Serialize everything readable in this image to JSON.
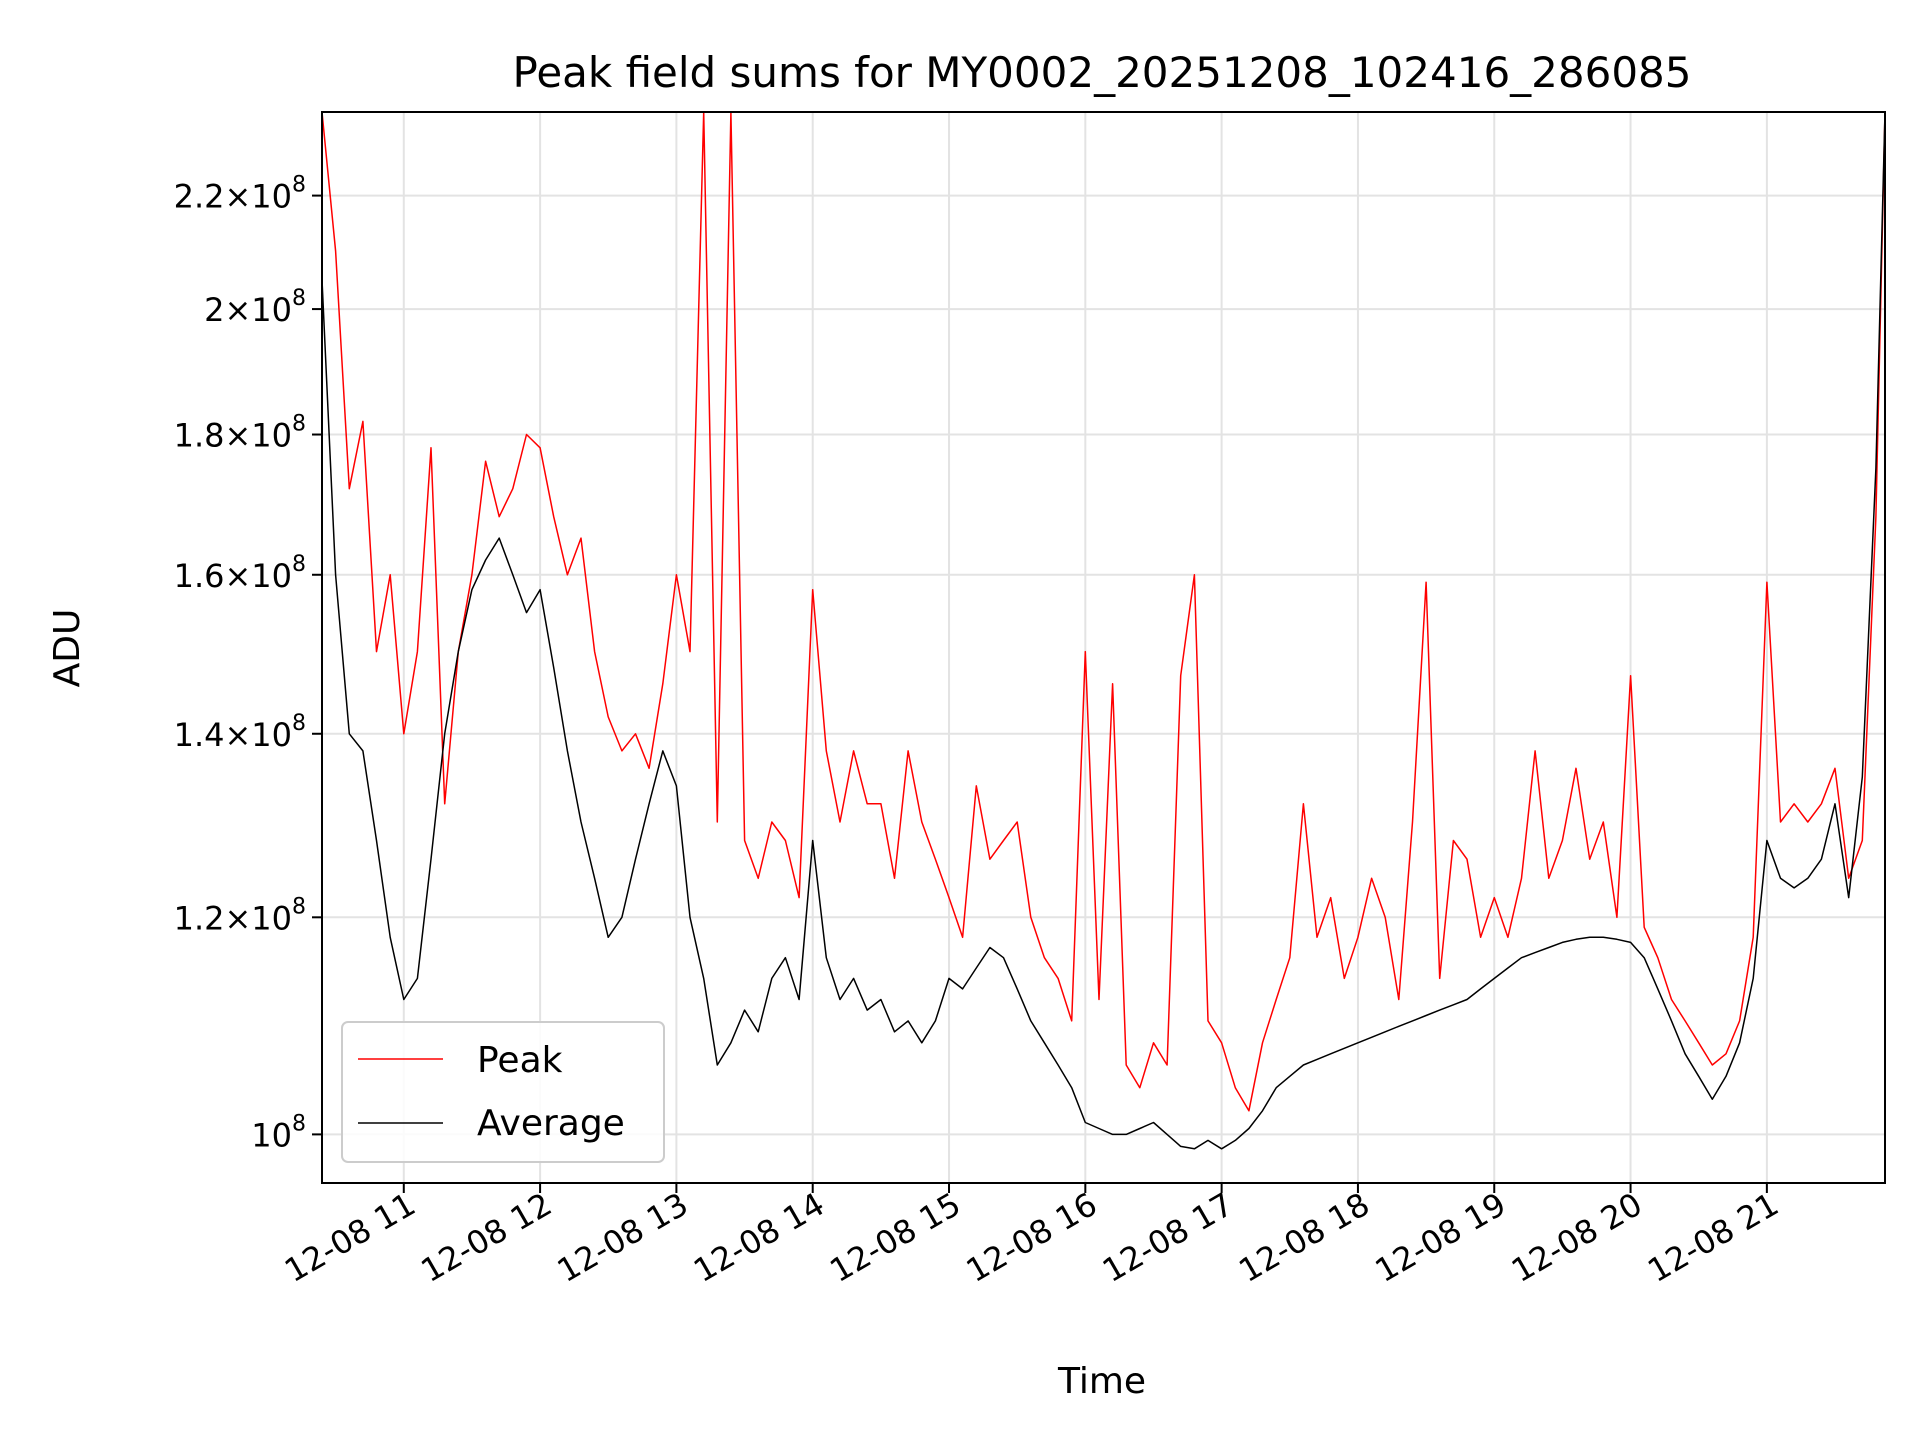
{
  "chart_data": {
    "type": "line",
    "title": "Peak field sums for MY0002_20251208_102416_286085",
    "xlabel": "Time",
    "ylabel": "ADU",
    "yscale": "log",
    "ylim": [
      96000000,
      236000000
    ],
    "xlim": [
      "2025-12-08 10:24",
      "2025-12-08 21:52"
    ],
    "grid": true,
    "legend_position": "lower-left",
    "x_ticks": [
      {
        "value": "2025-12-08 11:00",
        "label": "12-08 11"
      },
      {
        "value": "2025-12-08 12:00",
        "label": "12-08 12"
      },
      {
        "value": "2025-12-08 13:00",
        "label": "12-08 13"
      },
      {
        "value": "2025-12-08 14:00",
        "label": "12-08 14"
      },
      {
        "value": "2025-12-08 15:00",
        "label": "12-08 15"
      },
      {
        "value": "2025-12-08 16:00",
        "label": "12-08 16"
      },
      {
        "value": "2025-12-08 17:00",
        "label": "12-08 17"
      },
      {
        "value": "2025-12-08 18:00",
        "label": "12-08 18"
      },
      {
        "value": "2025-12-08 19:00",
        "label": "12-08 19"
      },
      {
        "value": "2025-12-08 20:00",
        "label": "12-08 20"
      },
      {
        "value": "2025-12-08 21:00",
        "label": "12-08 21"
      }
    ],
    "y_ticks": [
      {
        "value": 100000000,
        "mantissa": "",
        "exp": "8"
      },
      {
        "value": 120000000,
        "mantissa": "1.2",
        "exp": "8"
      },
      {
        "value": 140000000,
        "mantissa": "1.4",
        "exp": "8"
      },
      {
        "value": 160000000,
        "mantissa": "1.6",
        "exp": "8"
      },
      {
        "value": 180000000,
        "mantissa": "1.8",
        "exp": "8"
      },
      {
        "value": 200000000,
        "mantissa": "2",
        "exp": "8"
      },
      {
        "value": 220000000,
        "mantissa": "2.2",
        "exp": "8"
      }
    ],
    "tick_times_label": "×10",
    "series": [
      {
        "name": "Peak",
        "color": "#ff0000",
        "x": [
          "2025-12-08 10:24",
          "2025-12-08 10:30",
          "2025-12-08 10:36",
          "2025-12-08 10:42",
          "2025-12-08 10:48",
          "2025-12-08 10:54",
          "2025-12-08 11:00",
          "2025-12-08 11:06",
          "2025-12-08 11:12",
          "2025-12-08 11:18",
          "2025-12-08 11:24",
          "2025-12-08 11:30",
          "2025-12-08 11:36",
          "2025-12-08 11:42",
          "2025-12-08 11:48",
          "2025-12-08 11:54",
          "2025-12-08 12:00",
          "2025-12-08 12:06",
          "2025-12-08 12:12",
          "2025-12-08 12:18",
          "2025-12-08 12:24",
          "2025-12-08 12:30",
          "2025-12-08 12:36",
          "2025-12-08 12:42",
          "2025-12-08 12:48",
          "2025-12-08 12:54",
          "2025-12-08 13:00",
          "2025-12-08 13:06",
          "2025-12-08 13:12",
          "2025-12-08 13:18",
          "2025-12-08 13:24",
          "2025-12-08 13:30",
          "2025-12-08 13:36",
          "2025-12-08 13:42",
          "2025-12-08 13:48",
          "2025-12-08 13:54",
          "2025-12-08 14:00",
          "2025-12-08 14:06",
          "2025-12-08 14:12",
          "2025-12-08 14:18",
          "2025-12-08 14:24",
          "2025-12-08 14:30",
          "2025-12-08 14:36",
          "2025-12-08 14:42",
          "2025-12-08 14:48",
          "2025-12-08 14:54",
          "2025-12-08 15:00",
          "2025-12-08 15:06",
          "2025-12-08 15:12",
          "2025-12-08 15:18",
          "2025-12-08 15:24",
          "2025-12-08 15:30",
          "2025-12-08 15:36",
          "2025-12-08 15:42",
          "2025-12-08 15:48",
          "2025-12-08 15:54",
          "2025-12-08 16:00",
          "2025-12-08 16:06",
          "2025-12-08 16:12",
          "2025-12-08 16:18",
          "2025-12-08 16:24",
          "2025-12-08 16:30",
          "2025-12-08 16:36",
          "2025-12-08 16:42",
          "2025-12-08 16:48",
          "2025-12-08 16:54",
          "2025-12-08 17:00",
          "2025-12-08 17:06",
          "2025-12-08 17:12",
          "2025-12-08 17:18",
          "2025-12-08 17:24",
          "2025-12-08 17:30",
          "2025-12-08 17:36",
          "2025-12-08 17:42",
          "2025-12-08 17:48",
          "2025-12-08 17:54",
          "2025-12-08 18:00",
          "2025-12-08 18:06",
          "2025-12-08 18:12",
          "2025-12-08 18:18",
          "2025-12-08 18:24",
          "2025-12-08 18:30",
          "2025-12-08 18:36",
          "2025-12-08 18:42",
          "2025-12-08 18:48",
          "2025-12-08 18:54",
          "2025-12-08 19:00",
          "2025-12-08 19:06",
          "2025-12-08 19:12",
          "2025-12-08 19:18",
          "2025-12-08 19:24",
          "2025-12-08 19:30",
          "2025-12-08 19:36",
          "2025-12-08 19:42",
          "2025-12-08 19:48",
          "2025-12-08 19:54",
          "2025-12-08 20:00",
          "2025-12-08 20:06",
          "2025-12-08 20:12",
          "2025-12-08 20:18",
          "2025-12-08 20:24",
          "2025-12-08 20:30",
          "2025-12-08 20:36",
          "2025-12-08 20:42",
          "2025-12-08 20:48",
          "2025-12-08 20:54",
          "2025-12-08 21:00",
          "2025-12-08 21:06",
          "2025-12-08 21:12",
          "2025-12-08 21:18",
          "2025-12-08 21:24",
          "2025-12-08 21:30",
          "2025-12-08 21:36",
          "2025-12-08 21:42",
          "2025-12-08 21:48",
          "2025-12-08 21:52"
        ],
        "y": [
          236000000,
          210000000,
          172000000,
          182000000,
          150000000,
          160000000,
          140000000,
          150000000,
          178000000,
          132000000,
          150000000,
          160000000,
          176000000,
          168000000,
          172000000,
          180000000,
          178000000,
          168000000,
          160000000,
          165000000,
          150000000,
          142000000,
          138000000,
          140000000,
          136000000,
          146000000,
          160000000,
          150000000,
          236000000,
          130000000,
          236000000,
          128000000,
          124000000,
          130000000,
          128000000,
          122000000,
          158000000,
          138000000,
          130000000,
          138000000,
          132000000,
          132000000,
          124000000,
          138000000,
          130000000,
          126000000,
          122000000,
          118000000,
          134000000,
          126000000,
          128000000,
          130000000,
          120000000,
          116000000,
          114000000,
          110000000,
          150000000,
          112000000,
          146000000,
          106000000,
          104000000,
          108000000,
          106000000,
          147000000,
          160000000,
          110000000,
          108000000,
          104000000,
          102000000,
          108000000,
          112000000,
          116000000,
          132000000,
          118000000,
          122000000,
          114000000,
          118000000,
          124000000,
          120000000,
          112000000,
          130000000,
          159000000,
          114000000,
          128000000,
          126000000,
          118000000,
          122000000,
          118000000,
          124000000,
          138000000,
          124000000,
          128000000,
          136000000,
          126000000,
          130000000,
          120000000,
          147000000,
          119000000,
          116000000,
          112000000,
          110000000,
          108000000,
          106000000,
          107000000,
          110000000,
          118000000,
          159000000,
          130000000,
          132000000,
          130000000,
          132000000,
          136000000,
          124000000,
          128000000,
          168000000,
          236000000
        ]
      },
      {
        "name": "Average",
        "color": "#000000",
        "x": [
          "2025-12-08 10:24",
          "2025-12-08 10:30",
          "2025-12-08 10:36",
          "2025-12-08 10:42",
          "2025-12-08 10:48",
          "2025-12-08 10:54",
          "2025-12-08 11:00",
          "2025-12-08 11:06",
          "2025-12-08 11:12",
          "2025-12-08 11:18",
          "2025-12-08 11:24",
          "2025-12-08 11:30",
          "2025-12-08 11:36",
          "2025-12-08 11:42",
          "2025-12-08 11:48",
          "2025-12-08 11:54",
          "2025-12-08 12:00",
          "2025-12-08 12:06",
          "2025-12-08 12:12",
          "2025-12-08 12:18",
          "2025-12-08 12:24",
          "2025-12-08 12:30",
          "2025-12-08 12:36",
          "2025-12-08 12:42",
          "2025-12-08 12:48",
          "2025-12-08 12:54",
          "2025-12-08 13:00",
          "2025-12-08 13:06",
          "2025-12-08 13:12",
          "2025-12-08 13:18",
          "2025-12-08 13:24",
          "2025-12-08 13:30",
          "2025-12-08 13:36",
          "2025-12-08 13:42",
          "2025-12-08 13:48",
          "2025-12-08 13:54",
          "2025-12-08 14:00",
          "2025-12-08 14:06",
          "2025-12-08 14:12",
          "2025-12-08 14:18",
          "2025-12-08 14:24",
          "2025-12-08 14:30",
          "2025-12-08 14:36",
          "2025-12-08 14:42",
          "2025-12-08 14:48",
          "2025-12-08 14:54",
          "2025-12-08 15:00",
          "2025-12-08 15:06",
          "2025-12-08 15:12",
          "2025-12-08 15:18",
          "2025-12-08 15:24",
          "2025-12-08 15:30",
          "2025-12-08 15:36",
          "2025-12-08 15:42",
          "2025-12-08 15:48",
          "2025-12-08 15:54",
          "2025-12-08 16:00",
          "2025-12-08 16:06",
          "2025-12-08 16:12",
          "2025-12-08 16:18",
          "2025-12-08 16:24",
          "2025-12-08 16:30",
          "2025-12-08 16:36",
          "2025-12-08 16:42",
          "2025-12-08 16:48",
          "2025-12-08 16:54",
          "2025-12-08 17:00",
          "2025-12-08 17:06",
          "2025-12-08 17:12",
          "2025-12-08 17:18",
          "2025-12-08 17:24",
          "2025-12-08 17:30",
          "2025-12-08 17:36",
          "2025-12-08 17:42",
          "2025-12-08 17:48",
          "2025-12-08 17:54",
          "2025-12-08 18:00",
          "2025-12-08 18:06",
          "2025-12-08 18:12",
          "2025-12-08 18:18",
          "2025-12-08 18:24",
          "2025-12-08 18:30",
          "2025-12-08 18:36",
          "2025-12-08 18:42",
          "2025-12-08 18:48",
          "2025-12-08 18:54",
          "2025-12-08 19:00",
          "2025-12-08 19:06",
          "2025-12-08 19:12",
          "2025-12-08 19:18",
          "2025-12-08 19:24",
          "2025-12-08 19:30",
          "2025-12-08 19:36",
          "2025-12-08 19:42",
          "2025-12-08 19:48",
          "2025-12-08 19:54",
          "2025-12-08 20:00",
          "2025-12-08 20:06",
          "2025-12-08 20:12",
          "2025-12-08 20:18",
          "2025-12-08 20:24",
          "2025-12-08 20:30",
          "2025-12-08 20:36",
          "2025-12-08 20:42",
          "2025-12-08 20:48",
          "2025-12-08 20:54",
          "2025-12-08 21:00",
          "2025-12-08 21:06",
          "2025-12-08 21:12",
          "2025-12-08 21:18",
          "2025-12-08 21:24",
          "2025-12-08 21:30",
          "2025-12-08 21:36",
          "2025-12-08 21:42",
          "2025-12-08 21:48",
          "2025-12-08 21:52"
        ],
        "y": [
          205000000,
          160000000,
          140000000,
          138000000,
          128000000,
          118000000,
          112000000,
          114000000,
          126000000,
          140000000,
          150000000,
          158000000,
          162000000,
          165000000,
          160000000,
          155000000,
          158000000,
          148000000,
          138000000,
          130000000,
          124000000,
          118000000,
          120000000,
          126000000,
          132000000,
          138000000,
          134000000,
          120000000,
          114000000,
          106000000,
          108000000,
          111000000,
          109000000,
          114000000,
          116000000,
          112000000,
          128000000,
          116000000,
          112000000,
          114000000,
          111000000,
          112000000,
          109000000,
          110000000,
          108000000,
          110000000,
          114000000,
          113000000,
          115000000,
          117000000,
          116000000,
          113000000,
          110000000,
          108000000,
          106000000,
          104000000,
          101000000,
          100500000,
          100000000,
          100000000,
          100500000,
          101000000,
          100000000,
          99000000,
          98800000,
          99500000,
          98800000,
          99500000,
          100500000,
          102000000,
          104000000,
          105000000,
          106000000,
          106500000,
          107000000,
          107500000,
          108000000,
          108500000,
          109000000,
          109500000,
          110000000,
          110500000,
          111000000,
          111500000,
          112000000,
          113000000,
          114000000,
          115000000,
          116000000,
          116500000,
          117000000,
          117500000,
          117800000,
          118000000,
          118000000,
          117800000,
          117500000,
          116000000,
          113000000,
          110000000,
          107000000,
          105000000,
          103000000,
          105000000,
          108000000,
          114000000,
          128000000,
          124000000,
          123000000,
          124000000,
          126000000,
          132000000,
          122000000,
          135000000,
          175000000,
          236000000
        ]
      }
    ]
  }
}
